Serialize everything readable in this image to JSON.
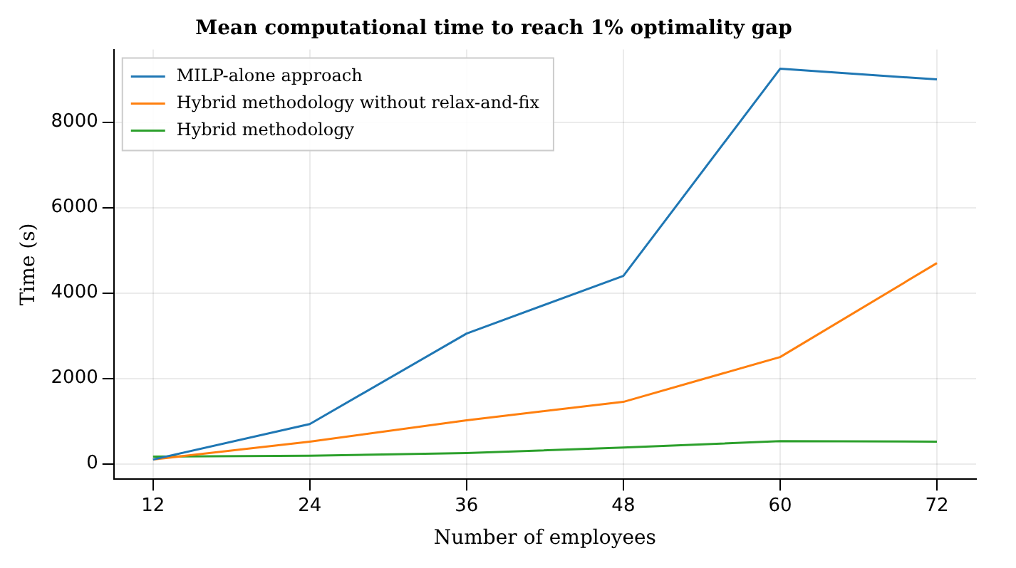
{
  "chart_data": {
    "type": "line",
    "title": "Mean computational time to reach 1% optimality gap",
    "xlabel": "Number of employees",
    "ylabel": "Time (s)",
    "x": [
      12,
      24,
      36,
      48,
      60,
      72
    ],
    "series": [
      {
        "name": "MILP-alone approach",
        "color": "#1f77b4",
        "values": [
          100,
          930,
          3050,
          4400,
          9250,
          9000
        ]
      },
      {
        "name": "Hybrid methodology without relax-and-fix",
        "color": "#ff7f0e",
        "values": [
          100,
          520,
          1020,
          1450,
          2500,
          4700
        ]
      },
      {
        "name": "Hybrid methodology",
        "color": "#2ca02c",
        "values": [
          170,
          190,
          250,
          380,
          530,
          520
        ]
      }
    ],
    "xlim": [
      9,
      75
    ],
    "xticks": [
      12,
      24,
      36,
      48,
      60,
      72
    ],
    "ylim": [
      -360,
      9700
    ],
    "yticks": [
      0,
      2000,
      4000,
      6000,
      8000
    ],
    "grid": true,
    "legend": "top left",
    "marker": "none",
    "line_style": "solid"
  }
}
